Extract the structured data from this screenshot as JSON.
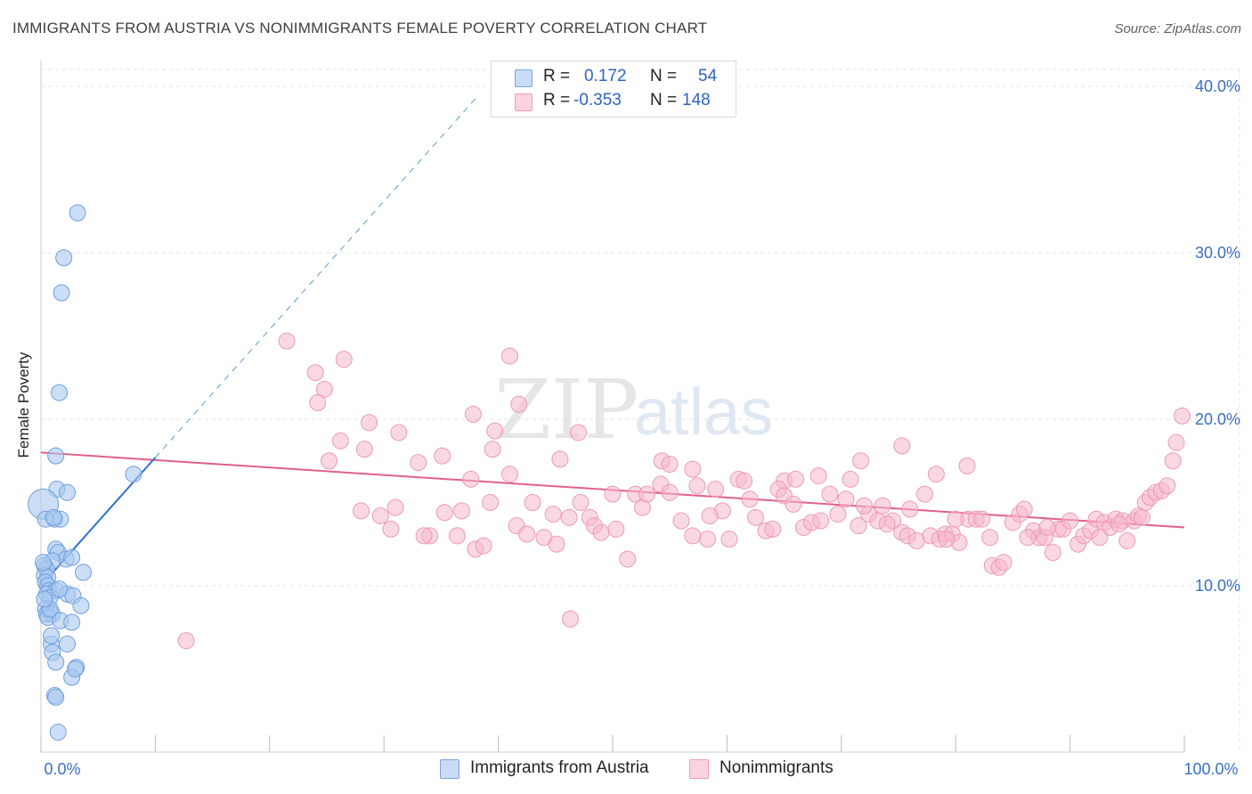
{
  "title": "IMMIGRANTS FROM AUSTRIA VS NONIMMIGRANTS FEMALE POVERTY CORRELATION CHART",
  "source": "Source: ZipAtlas.com",
  "watermark": {
    "zip": "ZIP",
    "atlas": "atlas"
  },
  "stats": [
    {
      "r_label": "R =",
      "r_value": "0.172",
      "n_label": "N =",
      "n_value": "54",
      "color": "#a9c8f0"
    },
    {
      "r_label": "R =",
      "r_value": "-0.353",
      "n_label": "N =",
      "n_value": "148",
      "color": "#f5b8cb"
    }
  ],
  "legend": [
    {
      "label": "Immigrants from Austria",
      "color": "#a9c8f0"
    },
    {
      "label": "Nonimmigrants",
      "color": "#f5b8cb"
    }
  ],
  "chart_data": {
    "type": "scatter",
    "title": "IMMIGRANTS FROM AUSTRIA VS NONIMMIGRANTS FEMALE POVERTY CORRELATION CHART",
    "xlabel": "",
    "ylabel": "Female Poverty",
    "xlim": [
      0,
      100
    ],
    "ylim": [
      0,
      40
    ],
    "x_tick_labels": [
      "0.0%",
      "100.0%"
    ],
    "y_tick_labels": [
      "10.0%",
      "20.0%",
      "30.0%",
      "40.0%"
    ],
    "y_ticks": [
      10,
      20,
      30,
      40
    ],
    "grid": true,
    "legend_position": "bottom-center",
    "series": [
      {
        "name": "Immigrants from Austria",
        "color": "#5b9bd5",
        "fill": "#a9c8f0",
        "trend": {
          "x0": 0,
          "y0": 10.0,
          "x1": 10,
          "y1": 17.7,
          "extended_to_x": 38,
          "style_extended": "dashed"
        },
        "points": [
          [
            3.2,
            32.4
          ],
          [
            2.0,
            29.7
          ],
          [
            1.8,
            27.6
          ],
          [
            1.6,
            21.6
          ],
          [
            1.3,
            17.8
          ],
          [
            8.1,
            16.7
          ],
          [
            1.4,
            15.8
          ],
          [
            2.3,
            15.6
          ],
          [
            0.2,
            14.9
          ],
          [
            0.4,
            14.0
          ],
          [
            1.2,
            14.0
          ],
          [
            1.7,
            14.0
          ],
          [
            1.3,
            12.2
          ],
          [
            1.5,
            12.0
          ],
          [
            2.2,
            11.6
          ],
          [
            2.7,
            11.7
          ],
          [
            1.0,
            11.5
          ],
          [
            0.3,
            11.2
          ],
          [
            0.5,
            11.0
          ],
          [
            0.3,
            10.6
          ],
          [
            0.6,
            10.5
          ],
          [
            3.7,
            10.8
          ],
          [
            0.4,
            10.2
          ],
          [
            0.6,
            10.0
          ],
          [
            0.7,
            9.7
          ],
          [
            1.3,
            9.7
          ],
          [
            0.5,
            9.5
          ],
          [
            0.8,
            9.3
          ],
          [
            2.3,
            9.5
          ],
          [
            2.8,
            9.4
          ],
          [
            0.4,
            8.6
          ],
          [
            0.7,
            8.5
          ],
          [
            0.5,
            8.3
          ],
          [
            1.0,
            8.3
          ],
          [
            0.6,
            8.1
          ],
          [
            1.7,
            7.9
          ],
          [
            2.7,
            7.8
          ],
          [
            3.5,
            8.8
          ],
          [
            0.9,
            6.5
          ],
          [
            2.3,
            6.5
          ],
          [
            1.0,
            6.0
          ],
          [
            1.3,
            5.4
          ],
          [
            3.1,
            5.1
          ],
          [
            2.7,
            4.5
          ],
          [
            1.2,
            3.4
          ],
          [
            1.3,
            3.3
          ],
          [
            1.5,
            1.2
          ],
          [
            0.8,
            8.6
          ],
          [
            0.3,
            9.2
          ],
          [
            1.1,
            14.1
          ],
          [
            0.2,
            11.4
          ],
          [
            1.6,
            9.8
          ],
          [
            0.9,
            7.0
          ],
          [
            3.0,
            5.0
          ]
        ]
      },
      {
        "name": "Nonimmigrants",
        "color": "#e0608a",
        "fill": "#f5b8cb",
        "trend": {
          "x0": 0,
          "y0": 18.0,
          "x1": 100,
          "y1": 13.5
        },
        "points": [
          [
            21.5,
            24.7
          ],
          [
            26.5,
            23.6
          ],
          [
            24.0,
            22.8
          ],
          [
            24.8,
            21.8
          ],
          [
            24.2,
            21.0
          ],
          [
            41.0,
            23.8
          ],
          [
            41.8,
            20.9
          ],
          [
            28.7,
            19.8
          ],
          [
            31.3,
            19.2
          ],
          [
            26.2,
            18.7
          ],
          [
            28.3,
            18.2
          ],
          [
            37.8,
            20.3
          ],
          [
            39.7,
            19.3
          ],
          [
            47.0,
            19.2
          ],
          [
            39.5,
            18.2
          ],
          [
            25.2,
            17.5
          ],
          [
            33.0,
            17.4
          ],
          [
            35.1,
            17.8
          ],
          [
            45.4,
            17.6
          ],
          [
            54.3,
            17.5
          ],
          [
            37.6,
            16.4
          ],
          [
            41.0,
            16.7
          ],
          [
            55.0,
            17.3
          ],
          [
            57.0,
            17.0
          ],
          [
            61.0,
            16.4
          ],
          [
            65.0,
            16.3
          ],
          [
            68.0,
            16.6
          ],
          [
            71.7,
            17.5
          ],
          [
            75.3,
            18.4
          ],
          [
            78.3,
            16.7
          ],
          [
            81.0,
            17.2
          ],
          [
            28.0,
            14.5
          ],
          [
            29.7,
            14.2
          ],
          [
            30.6,
            13.4
          ],
          [
            31.0,
            14.7
          ],
          [
            34.0,
            13.0
          ],
          [
            35.3,
            14.4
          ],
          [
            36.8,
            14.5
          ],
          [
            36.4,
            13.0
          ],
          [
            38.0,
            12.2
          ],
          [
            38.7,
            12.4
          ],
          [
            39.3,
            15.0
          ],
          [
            41.6,
            13.6
          ],
          [
            43.0,
            15.0
          ],
          [
            44.0,
            12.9
          ],
          [
            45.1,
            12.5
          ],
          [
            46.2,
            14.1
          ],
          [
            47.2,
            15.0
          ],
          [
            48.0,
            14.1
          ],
          [
            48.4,
            13.6
          ],
          [
            49.0,
            13.2
          ],
          [
            50.0,
            15.5
          ],
          [
            50.3,
            13.4
          ],
          [
            51.3,
            11.6
          ],
          [
            52.0,
            15.5
          ],
          [
            52.6,
            14.7
          ],
          [
            53.0,
            15.5
          ],
          [
            54.2,
            16.1
          ],
          [
            55.0,
            15.6
          ],
          [
            56.0,
            13.9
          ],
          [
            57.0,
            13.0
          ],
          [
            57.4,
            16.0
          ],
          [
            58.3,
            12.8
          ],
          [
            59.0,
            15.8
          ],
          [
            59.6,
            14.5
          ],
          [
            60.2,
            12.8
          ],
          [
            61.5,
            16.3
          ],
          [
            62.0,
            15.2
          ],
          [
            62.5,
            14.1
          ],
          [
            63.4,
            13.3
          ],
          [
            64.0,
            13.4
          ],
          [
            64.5,
            15.8
          ],
          [
            65.0,
            15.4
          ],
          [
            65.8,
            14.9
          ],
          [
            66.7,
            13.5
          ],
          [
            67.4,
            13.8
          ],
          [
            68.2,
            13.9
          ],
          [
            69.0,
            15.5
          ],
          [
            69.7,
            14.3
          ],
          [
            70.4,
            15.2
          ],
          [
            71.5,
            13.6
          ],
          [
            72.4,
            14.3
          ],
          [
            73.2,
            13.9
          ],
          [
            73.6,
            14.8
          ],
          [
            74.5,
            13.9
          ],
          [
            75.3,
            13.2
          ],
          [
            75.8,
            13.0
          ],
          [
            76.6,
            12.7
          ],
          [
            77.3,
            15.5
          ],
          [
            77.8,
            13.0
          ],
          [
            78.6,
            12.8
          ],
          [
            79.1,
            13.1
          ],
          [
            79.7,
            13.1
          ],
          [
            80.3,
            12.6
          ],
          [
            81.1,
            14.0
          ],
          [
            81.8,
            14.0
          ],
          [
            82.3,
            14.0
          ],
          [
            83.0,
            12.9
          ],
          [
            83.2,
            11.2
          ],
          [
            83.8,
            11.1
          ],
          [
            84.2,
            11.4
          ],
          [
            85.0,
            13.8
          ],
          [
            85.6,
            14.3
          ],
          [
            86.0,
            14.6
          ],
          [
            86.8,
            13.3
          ],
          [
            87.3,
            12.9
          ],
          [
            87.8,
            12.9
          ],
          [
            88.5,
            12.0
          ],
          [
            89.0,
            13.4
          ],
          [
            89.4,
            13.4
          ],
          [
            90.0,
            13.9
          ],
          [
            90.7,
            12.5
          ],
          [
            91.2,
            13.0
          ],
          [
            91.8,
            13.3
          ],
          [
            92.3,
            14.0
          ],
          [
            93.0,
            13.8
          ],
          [
            93.5,
            13.5
          ],
          [
            94.0,
            14.0
          ],
          [
            94.6,
            13.9
          ],
          [
            95.0,
            12.7
          ],
          [
            95.6,
            13.9
          ],
          [
            96.0,
            14.2
          ],
          [
            96.6,
            15.0
          ],
          [
            97.0,
            15.3
          ],
          [
            97.5,
            15.6
          ],
          [
            98.0,
            15.7
          ],
          [
            98.5,
            16.0
          ],
          [
            99.0,
            17.5
          ],
          [
            99.3,
            18.6
          ],
          [
            99.8,
            20.2
          ],
          [
            12.7,
            6.7
          ],
          [
            46.3,
            8.0
          ],
          [
            33.5,
            13.0
          ],
          [
            42.5,
            13.1
          ],
          [
            44.8,
            14.3
          ],
          [
            58.5,
            14.2
          ],
          [
            66.0,
            16.4
          ],
          [
            70.8,
            16.4
          ],
          [
            72.0,
            14.8
          ],
          [
            74.0,
            13.7
          ],
          [
            76.0,
            14.6
          ],
          [
            80.0,
            14.0
          ],
          [
            86.3,
            12.9
          ],
          [
            88.0,
            13.5
          ],
          [
            92.6,
            12.9
          ],
          [
            94.3,
            13.7
          ],
          [
            96.3,
            14.1
          ],
          [
            79.2,
            12.8
          ]
        ]
      }
    ]
  }
}
